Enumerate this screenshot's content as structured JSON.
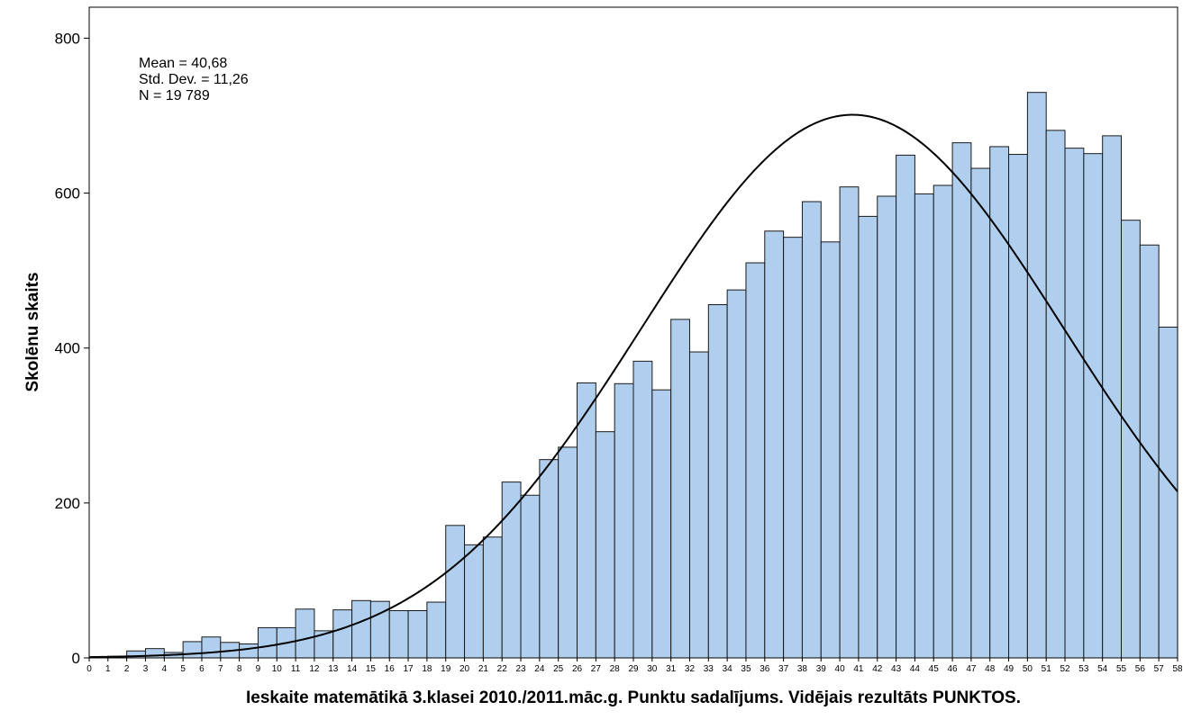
{
  "chart_data": {
    "type": "bar",
    "subtype": "histogram",
    "xlabel": "Ieskaite matemātikā 3.klasei 2010./2011.māc.g. Punktu sadalījums. Vidējais rezultāts PUNKTOS.",
    "ylabel": "Skolēnu skaits",
    "x_ticks": [
      "0",
      "1",
      "2",
      "3",
      "4",
      "5",
      "6",
      "7",
      "8",
      "9",
      "10",
      "11",
      "12",
      "13",
      "14",
      "15",
      "16",
      "17",
      "18",
      "19",
      "20",
      "21",
      "22",
      "23",
      "24",
      "25",
      "26",
      "27",
      "28",
      "29",
      "30",
      "31",
      "32",
      "33",
      "34",
      "35",
      "36",
      "37",
      "38",
      "39",
      "40",
      "41",
      "42",
      "43",
      "44",
      "45",
      "46",
      "47",
      "48",
      "49",
      "50",
      "51",
      "52",
      "53",
      "54",
      "55",
      "56",
      "57",
      "58"
    ],
    "y_ticks": [
      "0",
      "200",
      "400",
      "600",
      "800"
    ],
    "xlim": [
      0,
      58
    ],
    "ylim": [
      0,
      840
    ],
    "bin_width": 1,
    "bins": [
      {
        "start": 1,
        "value": 2
      },
      {
        "start": 2,
        "value": 9
      },
      {
        "start": 3,
        "value": 12
      },
      {
        "start": 4,
        "value": 7
      },
      {
        "start": 5,
        "value": 21
      },
      {
        "start": 6,
        "value": 27
      },
      {
        "start": 7,
        "value": 20
      },
      {
        "start": 8,
        "value": 18
      },
      {
        "start": 9,
        "value": 39
      },
      {
        "start": 10,
        "value": 39
      },
      {
        "start": 11,
        "value": 63
      },
      {
        "start": 12,
        "value": 35
      },
      {
        "start": 13,
        "value": 62
      },
      {
        "start": 14,
        "value": 74
      },
      {
        "start": 15,
        "value": 73
      },
      {
        "start": 16,
        "value": 61
      },
      {
        "start": 17,
        "value": 61
      },
      {
        "start": 18,
        "value": 72
      },
      {
        "start": 19,
        "value": 171
      },
      {
        "start": 20,
        "value": 146
      },
      {
        "start": 21,
        "value": 156
      },
      {
        "start": 22,
        "value": 227
      },
      {
        "start": 23,
        "value": 210
      },
      {
        "start": 24,
        "value": 256
      },
      {
        "start": 25,
        "value": 272
      },
      {
        "start": 26,
        "value": 355
      },
      {
        "start": 27,
        "value": 292
      },
      {
        "start": 28,
        "value": 354
      },
      {
        "start": 29,
        "value": 383
      },
      {
        "start": 30,
        "value": 346
      },
      {
        "start": 31,
        "value": 437
      },
      {
        "start": 32,
        "value": 395
      },
      {
        "start": 33,
        "value": 456
      },
      {
        "start": 34,
        "value": 475
      },
      {
        "start": 35,
        "value": 510
      },
      {
        "start": 36,
        "value": 551
      },
      {
        "start": 37,
        "value": 543
      },
      {
        "start": 38,
        "value": 589
      },
      {
        "start": 39,
        "value": 537
      },
      {
        "start": 40,
        "value": 608
      },
      {
        "start": 41,
        "value": 570
      },
      {
        "start": 42,
        "value": 596
      },
      {
        "start": 43,
        "value": 649
      },
      {
        "start": 44,
        "value": 599
      },
      {
        "start": 45,
        "value": 610
      },
      {
        "start": 46,
        "value": 665
      },
      {
        "start": 47,
        "value": 632
      },
      {
        "start": 48,
        "value": 660
      },
      {
        "start": 49,
        "value": 650
      },
      {
        "start": 50,
        "value": 730
      },
      {
        "start": 51,
        "value": 681
      },
      {
        "start": 52,
        "value": 658
      },
      {
        "start": 53,
        "value": 651
      },
      {
        "start": 54,
        "value": 674
      },
      {
        "start": 55,
        "value": 565
      },
      {
        "start": 56,
        "value": 533
      },
      {
        "start": 57,
        "value": 427
      }
    ],
    "normal_curve": {
      "mean": 40.68,
      "std": 11.26,
      "n": 19789
    },
    "stats": {
      "mean_label": "Mean = 40,68",
      "std_label": "Std. Dev. = 11,26",
      "n_label": "N = 19 789"
    },
    "colors": {
      "bar_fill": "#b0cfee",
      "bar_stroke": "#1a1a1a",
      "curve": "#000000"
    },
    "grid": false
  }
}
